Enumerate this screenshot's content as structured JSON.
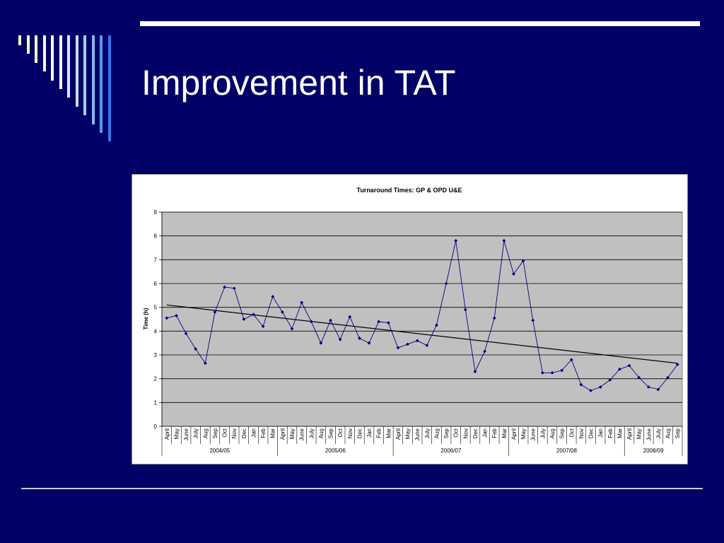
{
  "slide": {
    "title": "Improvement in TAT",
    "background": "#000066",
    "deco_colors": [
      "#ffffcc",
      "#ffffcc",
      "#ffffcc",
      "#ffffcc",
      "#ffffff",
      "#ffffff",
      "#dde8f8",
      "#c6dcf6",
      "#a8ccf0",
      "#88b8ee",
      "#5599ee",
      "#3377ee"
    ]
  },
  "chart_data": {
    "type": "line",
    "title": "Turnaround Times: GP & OPD U&E",
    "ylabel": "Time (h)",
    "xlabel": "",
    "ylim": [
      0,
      9
    ],
    "yticks": [
      0,
      1,
      2,
      3,
      4,
      5,
      6,
      7,
      8,
      9
    ],
    "grid": true,
    "plot_background": "#c0c0c0",
    "series_color": "#000080",
    "trend_color": "#000000",
    "categories": [
      "April",
      "May",
      "June",
      "July",
      "Aug",
      "Sep",
      "Oct",
      "Nov",
      "Dec",
      "Jan",
      "Feb",
      "Mar",
      "April",
      "May",
      "June",
      "July",
      "Aug",
      "Sep",
      "Oct",
      "Nov",
      "Dec",
      "Jan",
      "Feb",
      "Mar",
      "April",
      "May",
      "June",
      "July",
      "Aug",
      "Sep",
      "Oct",
      "Nov",
      "Dec",
      "Jan",
      "Feb",
      "Mar",
      "April",
      "May",
      "June",
      "July",
      "Aug",
      "Sep",
      "Oct",
      "Nov",
      "Dec",
      "Jan",
      "Feb",
      "Mar",
      "April",
      "May",
      "June",
      "July",
      "Aug",
      "Sep"
    ],
    "groups": [
      {
        "label": "2004/05",
        "count": 12
      },
      {
        "label": "2005/06",
        "count": 12
      },
      {
        "label": "2006/07",
        "count": 12
      },
      {
        "label": "2007/08",
        "count": 12
      },
      {
        "label": "2008/09",
        "count": 6
      }
    ],
    "values": [
      4.55,
      4.65,
      3.9,
      3.25,
      2.65,
      4.8,
      5.85,
      5.8,
      4.5,
      4.7,
      4.2,
      5.45,
      4.8,
      4.1,
      5.2,
      4.4,
      3.5,
      4.45,
      3.65,
      4.6,
      3.7,
      3.5,
      4.4,
      4.35,
      3.3,
      3.45,
      3.6,
      3.4,
      4.25,
      6.0,
      7.8,
      4.9,
      2.3,
      3.15,
      4.55,
      7.8,
      6.4,
      6.95,
      4.45,
      2.25,
      2.25,
      2.35,
      2.8,
      1.75,
      1.5,
      1.65,
      1.95,
      2.4,
      2.55,
      2.05,
      1.65,
      1.55,
      2.05,
      2.6
    ],
    "trendline": {
      "start": 5.1,
      "end": 2.65
    }
  }
}
